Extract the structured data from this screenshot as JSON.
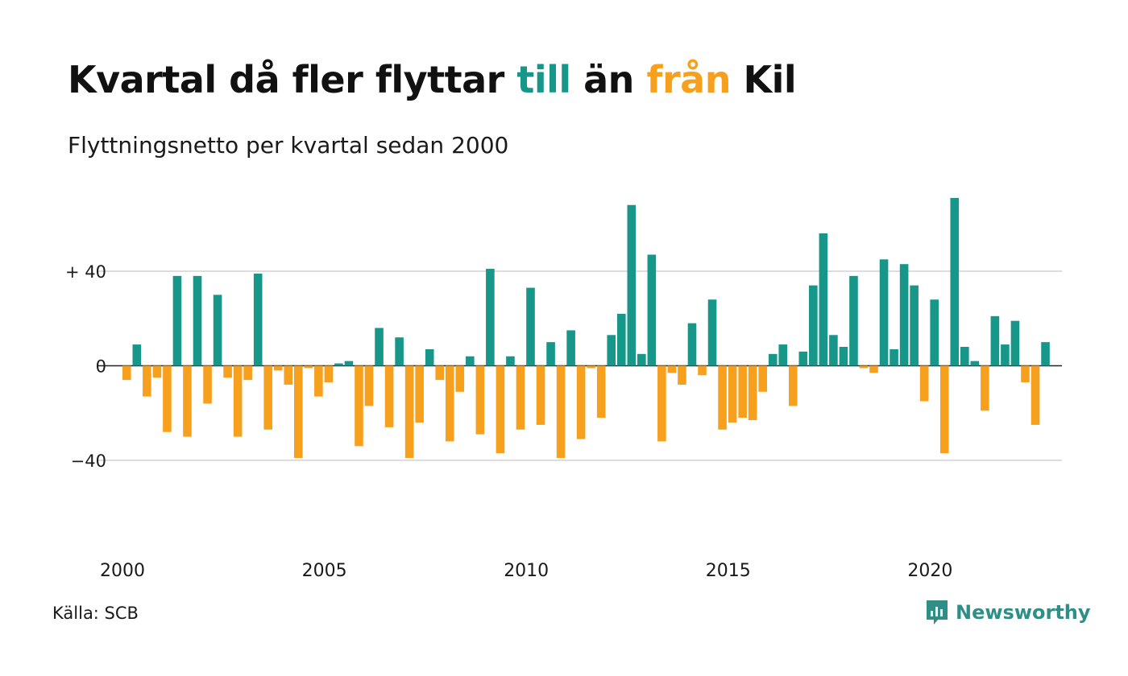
{
  "title": {
    "part1": "Kvartal då fler flyttar ",
    "till": "till",
    "part2": " än ",
    "fran": "från",
    "part3": " Kil"
  },
  "subtitle": "Flyttningsnetto per kvartal sedan 2000",
  "source": "Källa: SCB",
  "brand": {
    "name": "Newsworthy",
    "icon": "newsworthy-logo-icon"
  },
  "colors": {
    "positive": "#17968a",
    "negative": "#f7a01e",
    "grid": "#dddddd",
    "brand": "#2f8f86"
  },
  "chart_data": {
    "type": "bar",
    "title": "Kvartal då fler flyttar till än från Kil",
    "subtitle": "Flyttningsnetto per kvartal sedan 2000",
    "xlabel": "",
    "ylabel": "",
    "ylim": [
      -70,
      70
    ],
    "grid": true,
    "start_year": 2000,
    "x_ticks": [
      {
        "year": 2000,
        "label": "2000"
      },
      {
        "year": 2005,
        "label": "2005"
      },
      {
        "year": 2010,
        "label": "2010"
      },
      {
        "year": 2015,
        "label": "2015"
      },
      {
        "year": 2020,
        "label": "2020"
      }
    ],
    "y_ticks": [
      {
        "value": 40,
        "label": "+ 40"
      },
      {
        "value": 0,
        "label": "0"
      },
      {
        "value": -40,
        "label": "−40"
      }
    ],
    "series": [
      {
        "values": [
          -6,
          9,
          -13,
          -5,
          -28,
          38,
          -30,
          38,
          -16,
          30,
          -5,
          -30,
          -6,
          39,
          -27,
          -2,
          -8,
          -39,
          -1,
          -13,
          -7,
          1,
          2,
          -34,
          -17,
          16,
          -26,
          12,
          -39,
          -24,
          7,
          -6,
          -32,
          -11,
          4,
          -29,
          41,
          -37,
          4,
          -27,
          33,
          -25,
          10,
          -39,
          15,
          -31,
          -1,
          -22,
          13,
          22,
          68,
          5,
          47,
          -32,
          -3,
          -8,
          18,
          -4,
          28,
          -27,
          -24,
          -22,
          -23,
          -11,
          5,
          9,
          -17,
          6,
          34,
          56,
          13,
          8,
          38,
          -1,
          -3,
          45,
          7,
          43,
          34,
          -15,
          28,
          -37,
          71,
          8,
          2,
          -19,
          21,
          9,
          19,
          -7,
          -25,
          10
        ]
      }
    ]
  }
}
